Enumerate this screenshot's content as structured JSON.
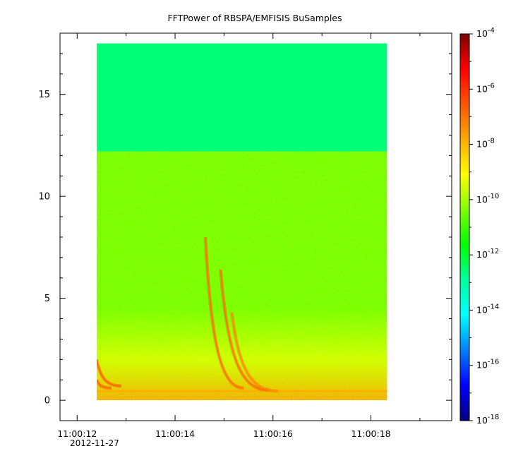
{
  "chart_data": {
    "type": "heatmap",
    "title": "FFTPower of RBSPA/EMFISIS  BuSamples",
    "xlabel": "",
    "ylabel": "",
    "x_range": [
      "11:00:11.65",
      "11:00:19.65"
    ],
    "data_x_range": [
      "11:00:12.40",
      "11:00:18.33"
    ],
    "ylim": [
      -1,
      18
    ],
    "data_y_range": [
      0,
      17.5
    ],
    "x_ticks": [
      "11:00:12",
      "11:00:14",
      "11:00:16",
      "11:00:18"
    ],
    "x_tick_date": "2012-11-27",
    "y_ticks": [
      "0",
      "5",
      "10",
      "15"
    ],
    "grid": false,
    "colorbar": {
      "scale": "log",
      "range": [
        1e-18,
        0.0001
      ],
      "tick_mantissa": "10",
      "tick_exponents": [
        "-4",
        "-6",
        "-8",
        "-10",
        "-12",
        "-14",
        "-16",
        "-18"
      ],
      "colormap": [
        "#00007f",
        "#0000ff",
        "#007fff",
        "#00ffff",
        "#00ff9f",
        "#00ff00",
        "#7fff00",
        "#ffff00",
        "#ffaa00",
        "#ff5500",
        "#ff0000",
        "#7f0000"
      ]
    },
    "background_level_log10": {
      "above_12_2": -12.6,
      "between_4_and_12_2": -10.4,
      "below_4": -9.2,
      "near_0_4": -7.8
    },
    "features": [
      {
        "name": "chorus-rise-1",
        "start_time": "11:00:14.62",
        "end_time": "11:00:15.40",
        "start_freq": 8.0,
        "end_freq": 0.6,
        "log10_power": -7.0
      },
      {
        "name": "chorus-rise-2",
        "start_time": "11:00:14.93",
        "end_time": "11:00:15.90",
        "start_freq": 6.4,
        "end_freq": 0.5,
        "log10_power": -7.0
      },
      {
        "name": "chorus-rise-3",
        "start_time": "11:00:15.16",
        "end_time": "11:00:16.10",
        "start_freq": 4.3,
        "end_freq": 0.45,
        "log10_power": -7.4
      },
      {
        "name": "low-band-1",
        "start_time": "11:00:12.40",
        "end_time": "11:00:12.90",
        "start_freq": 2.0,
        "end_freq": 0.7,
        "log10_power": -6.8
      },
      {
        "name": "low-band-2",
        "start_time": "11:00:12.40",
        "end_time": "11:00:12.70",
        "start_freq": 1.0,
        "end_freq": 0.6,
        "log10_power": -6.8
      }
    ]
  }
}
